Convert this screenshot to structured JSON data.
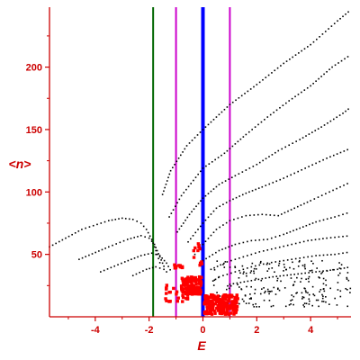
{
  "chart_data": {
    "type": "scatter",
    "title": "",
    "xlabel": "E",
    "ylabel": "<n>",
    "xlim": [
      -5.7,
      5.5
    ],
    "ylim": [
      0,
      248
    ],
    "x_ticks": [
      -4,
      -2,
      0,
      2,
      4
    ],
    "y_ticks": [
      50,
      100,
      150,
      200
    ],
    "x_tick_labels": [
      "-4",
      "-2",
      "0",
      "2",
      "4"
    ],
    "y_tick_labels": [
      "50",
      "100",
      "150",
      "200"
    ],
    "grid": false,
    "legend": "none",
    "colors": {
      "axes": "#cc0000",
      "black_points": "#000000",
      "red_points": "#ff0000",
      "line_green": "#006600",
      "line_magenta": "#cc00cc",
      "line_blue": "#0000ff"
    },
    "vertical_lines": [
      {
        "x": -1.85,
        "color": "green"
      },
      {
        "x": -1.0,
        "color": "magenta"
      },
      {
        "x": 0.0,
        "color": "blue",
        "emphasis": "thick"
      },
      {
        "x": 1.0,
        "color": "magenta"
      }
    ],
    "curves": [
      {
        "x": [
          -5.7,
          -4.5,
          -3.5,
          -3.0,
          -2.6,
          -2.3,
          -2.1,
          -1.9,
          -1.7,
          -1.55
        ],
        "y": [
          56,
          70,
          77,
          79,
          78,
          75,
          70,
          62,
          50,
          40
        ]
      },
      {
        "x": [
          -4.6,
          -3.5,
          -2.8,
          -2.3,
          -2.0,
          -1.8,
          -1.6,
          -1.4
        ],
        "y": [
          46,
          56,
          62,
          65,
          63,
          58,
          48,
          38
        ]
      },
      {
        "x": [
          -3.8,
          -2.9,
          -2.3,
          -1.9,
          -1.6,
          -1.35,
          -1.15
        ],
        "y": [
          36,
          44,
          49,
          51,
          49,
          43,
          35
        ]
      },
      {
        "x": [
          -2.6,
          -2.1,
          -1.75,
          -1.45,
          -1.25
        ],
        "y": [
          33,
          38,
          40,
          38,
          34
        ]
      },
      {
        "x": [
          -1.5,
          -1.2,
          -0.6,
          0.0,
          1.0,
          2.0,
          3.0,
          4.0,
          5.0,
          5.5
        ],
        "y": [
          98,
          117,
          137,
          150,
          170,
          186,
          203,
          218,
          237,
          246
        ]
      },
      {
        "x": [
          -1.25,
          -0.8,
          0.0,
          0.8,
          1.6,
          2.4,
          3.2,
          4.0,
          4.8,
          5.5
        ],
        "y": [
          80,
          97,
          119,
          131,
          146,
          160,
          173,
          185,
          200,
          210
        ]
      },
      {
        "x": [
          -0.95,
          -0.5,
          0.0,
          0.6,
          1.2,
          2.0,
          2.8,
          3.6,
          4.4,
          5.2,
          5.5
        ],
        "y": [
          68,
          82,
          95,
          106,
          113,
          122,
          133,
          142,
          152,
          163,
          168
        ]
      },
      {
        "x": [
          -0.55,
          0.0,
          0.5,
          1.0,
          1.6,
          2.2,
          3.0,
          3.8,
          4.6,
          5.5
        ],
        "y": [
          60,
          75,
          87,
          93,
          99,
          104,
          111,
          119,
          127,
          135
        ]
      },
      {
        "x": [
          -0.3,
          0.0,
          0.5,
          1.0,
          1.6,
          2.2,
          2.8,
          3.4,
          4.0,
          4.7,
          5.5
        ],
        "y": [
          50,
          58,
          70,
          77,
          81,
          82,
          81,
          87,
          93,
          100,
          108
        ]
      },
      {
        "x": [
          0.0,
          0.6,
          1.2,
          1.8,
          2.4,
          3.0,
          3.6,
          4.2,
          4.9,
          5.5
        ],
        "y": [
          45,
          53,
          58,
          61,
          62,
          66,
          71,
          76,
          80,
          84
        ]
      },
      {
        "x": [
          0.3,
          0.9,
          1.5,
          2.1,
          2.7,
          3.3,
          3.9,
          4.6,
          5.5
        ],
        "y": [
          38,
          44,
          48,
          52,
          55,
          58,
          61,
          63,
          65
        ]
      },
      {
        "x": [
          0.6,
          1.2,
          1.8,
          2.4,
          3.0,
          3.6,
          4.2,
          4.9,
          5.5
        ],
        "y": [
          32,
          36,
          40,
          43,
          45,
          47,
          49,
          50,
          52
        ]
      },
      {
        "x": [
          1.0,
          1.8,
          2.6,
          3.4,
          4.2,
          5.0,
          5.5
        ],
        "y": [
          26,
          29,
          32,
          34,
          36,
          38,
          40
        ]
      }
    ],
    "black_scatter_cloud": {
      "x_range": [
        0.3,
        5.5
      ],
      "y_range": [
        8,
        45
      ],
      "count": 220
    },
    "red_clusters": [
      {
        "x_range": [
          -1.1,
          -0.75
        ],
        "y_range": [
          39,
          42
        ],
        "count": 14
      },
      {
        "x_range": [
          -0.8,
          -0.05
        ],
        "y_range": [
          18,
          32
        ],
        "count": 140
      },
      {
        "x_range": [
          -0.35,
          0.0
        ],
        "y_range": [
          40,
          62
        ],
        "count": 12
      },
      {
        "x_range": [
          0.05,
          1.3
        ],
        "y_range": [
          2,
          18
        ],
        "count": 220
      },
      {
        "x_range": [
          -1.4,
          -0.4
        ],
        "y_range": [
          12,
          26
        ],
        "count": 30
      }
    ]
  }
}
